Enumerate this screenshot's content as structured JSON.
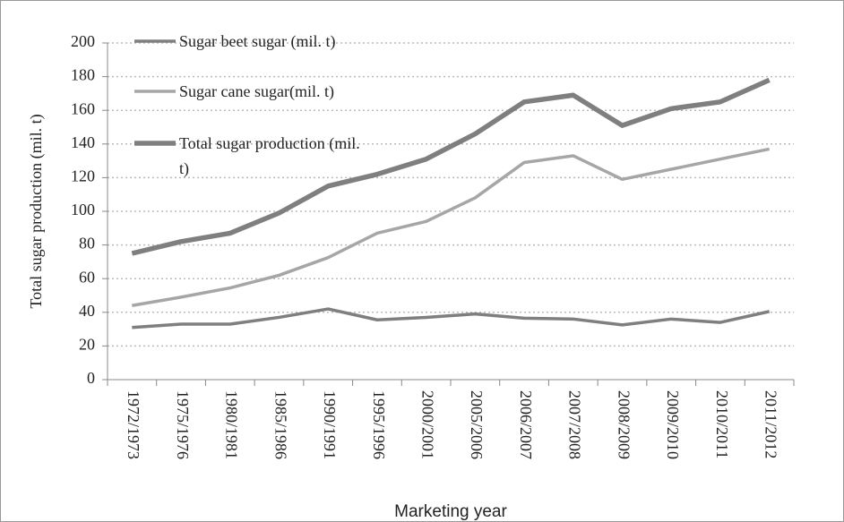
{
  "chart_data": {
    "type": "line",
    "x_label": "Marketing  year",
    "y_label": "Total sugar production (mil. t)",
    "categories": [
      "1972/1973",
      "1975/1976",
      "1980/1981",
      "1985/1986",
      "1990/1991",
      "1995/1996",
      "2000/2001",
      "2005/2006",
      "2006/2007",
      "2007/2008",
      "2008/2009",
      "2009/2010",
      "2010/2011",
      "2011/2012"
    ],
    "series": [
      {
        "name": "Sugar beet sugar (mil. t)",
        "color": "#7f7f7f",
        "values": [
          31,
          33,
          33,
          37,
          42,
          35.5,
          37,
          39,
          36.5,
          36,
          32.5,
          36,
          34,
          40.5
        ]
      },
      {
        "name": "Sugar cane sugar(mil. t)",
        "color": "#a6a6a6",
        "values": [
          44,
          49,
          54.5,
          62,
          72.5,
          87,
          94,
          108,
          129,
          133,
          119,
          125,
          131,
          137
        ]
      },
      {
        "name": "Total sugar production (mil. t)",
        "color": "#7f7f7f",
        "values": [
          75,
          82,
          87,
          99,
          115,
          122,
          131,
          146,
          165,
          169,
          151,
          161,
          165,
          178
        ]
      }
    ],
    "ylim": [
      0,
      200
    ],
    "yticks": [
      0,
      20,
      40,
      60,
      80,
      100,
      120,
      140,
      160,
      180,
      200
    ],
    "grid": true
  }
}
